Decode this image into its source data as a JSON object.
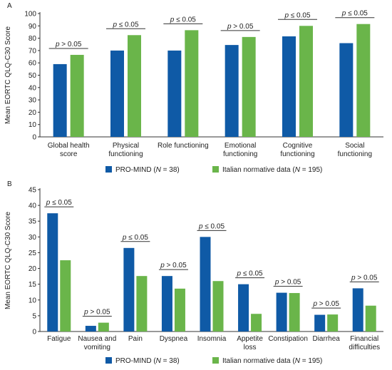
{
  "colors": {
    "pro_mind": "#0f5aa6",
    "italian": "#6ab54a"
  },
  "legend": {
    "items": [
      {
        "prefix": "PRO-MIND (",
        "italic": "N",
        "suffix": " = 38)",
        "color": "#0f5aa6"
      },
      {
        "prefix": "Italian normative data (",
        "italic": "N",
        "suffix": " = 195)",
        "color": "#6ab54a"
      }
    ]
  },
  "chart_data": [
    {
      "type": "bar",
      "panel": "A",
      "ylabel": "Mean EORTC QLQ-C30 Score",
      "ylim": [
        0,
        100
      ],
      "yticks": [
        0,
        10,
        20,
        30,
        40,
        50,
        60,
        70,
        80,
        90,
        100
      ],
      "categories": [
        [
          "Global health",
          "score"
        ],
        [
          "Physical",
          "functioning"
        ],
        [
          "Role functioning"
        ],
        [
          "Emotional",
          "functioning"
        ],
        [
          "Cognitive",
          "functioning"
        ],
        [
          "Social",
          "functioning"
        ]
      ],
      "series": [
        {
          "name": "PRO-MIND (N = 38)",
          "values": [
            59,
            70,
            70,
            74.5,
            81.5,
            76
          ]
        },
        {
          "name": "Italian normative data (N = 195)",
          "values": [
            66.5,
            82.5,
            86.5,
            81,
            90,
            91.5
          ]
        }
      ],
      "annotations": [
        {
          "p": "p",
          "rest": " > 0.05"
        },
        {
          "p": "p",
          "rest": " ≤ 0.05"
        },
        {
          "p": "p",
          "rest": " ≤ 0.05"
        },
        {
          "p": "p",
          "rest": " > 0.05"
        },
        {
          "p": "p",
          "rest": " ≤ 0.05"
        },
        {
          "p": "p",
          "rest": " ≤ 0.05"
        }
      ]
    },
    {
      "type": "bar",
      "panel": "B",
      "ylabel": "Mean EORTC QLQ-C30 Score",
      "ylim": [
        0,
        45
      ],
      "yticks": [
        0,
        5,
        10,
        15,
        20,
        25,
        30,
        35,
        40,
        45
      ],
      "categories": [
        [
          "Fatigue"
        ],
        [
          "Nausea and",
          "vomiting"
        ],
        [
          "Pain"
        ],
        [
          "Dyspnea"
        ],
        [
          "Insomnia"
        ],
        [
          "Appetite",
          "loss"
        ],
        [
          "Constipation"
        ],
        [
          "Diarrhea"
        ],
        [
          "Financial",
          "difficulties"
        ]
      ],
      "series": [
        {
          "name": "PRO-MIND (N = 38)",
          "values": [
            37.5,
            1.8,
            26.5,
            17.6,
            30,
            15,
            12.3,
            5.3,
            13.7
          ]
        },
        {
          "name": "Italian normative data (N = 195)",
          "values": [
            22.6,
            2.8,
            17.6,
            13.6,
            16,
            5.6,
            12.2,
            5.4,
            8.2
          ]
        }
      ],
      "annotations": [
        {
          "p": "p",
          "rest": " ≤ 0.05"
        },
        {
          "p": "p",
          "rest": " > 0.05"
        },
        {
          "p": "p",
          "rest": " ≤ 0.05"
        },
        {
          "p": "p",
          "rest": " > 0.05"
        },
        {
          "p": "p",
          "rest": " ≤ 0.05"
        },
        {
          "p": "p",
          "rest": " ≤ 0.05"
        },
        {
          "p": "p",
          "rest": " > 0.05"
        },
        {
          "p": "p",
          "rest": " > 0.05"
        },
        {
          "p": "p",
          "rest": " > 0.05"
        }
      ]
    }
  ]
}
